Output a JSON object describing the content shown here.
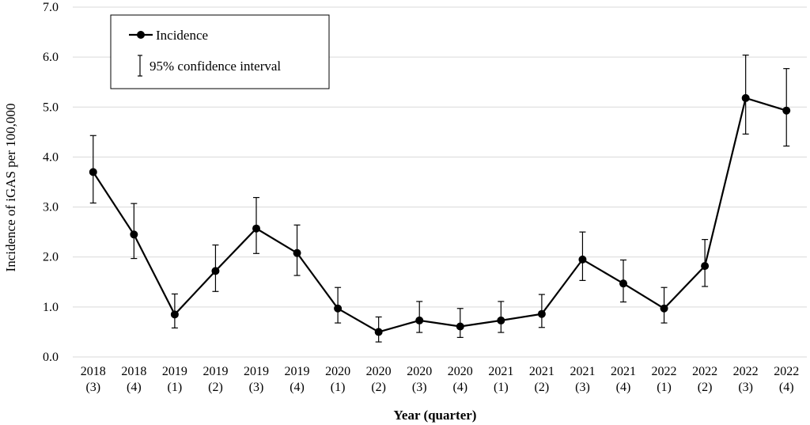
{
  "chart_data": {
    "type": "line",
    "title": "",
    "xlabel": "Year (quarter)",
    "ylabel": "Incidence of iGAS per 100,000",
    "ylim": [
      0,
      7
    ],
    "yticks": [
      "0.0",
      "1.0",
      "2.0",
      "3.0",
      "4.0",
      "5.0",
      "6.0",
      "7.0"
    ],
    "grid": true,
    "legend_position": "top-left",
    "categories": [
      {
        "year": "2018",
        "quarter": "(3)"
      },
      {
        "year": "2018",
        "quarter": "(4)"
      },
      {
        "year": "2019",
        "quarter": "(1)"
      },
      {
        "year": "2019",
        "quarter": "(2)"
      },
      {
        "year": "2019",
        "quarter": "(3)"
      },
      {
        "year": "2019",
        "quarter": "(4)"
      },
      {
        "year": "2020",
        "quarter": "(1)"
      },
      {
        "year": "2020",
        "quarter": "(2)"
      },
      {
        "year": "2020",
        "quarter": "(3)"
      },
      {
        "year": "2020",
        "quarter": "(4)"
      },
      {
        "year": "2021",
        "quarter": "(1)"
      },
      {
        "year": "2021",
        "quarter": "(2)"
      },
      {
        "year": "2021",
        "quarter": "(3)"
      },
      {
        "year": "2021",
        "quarter": "(4)"
      },
      {
        "year": "2022",
        "quarter": "(1)"
      },
      {
        "year": "2022",
        "quarter": "(2)"
      },
      {
        "year": "2022",
        "quarter": "(3)"
      },
      {
        "year": "2022",
        "quarter": "(4)"
      }
    ],
    "series": [
      {
        "name": "Incidence",
        "values": [
          3.7,
          2.45,
          0.85,
          1.72,
          2.57,
          2.08,
          0.97,
          0.5,
          0.73,
          0.61,
          0.73,
          0.86,
          1.95,
          1.47,
          0.97,
          1.82,
          5.18,
          4.93
        ],
        "ci_lower": [
          3.08,
          1.97,
          0.58,
          1.31,
          2.07,
          1.63,
          0.68,
          0.3,
          0.49,
          0.39,
          0.49,
          0.59,
          1.53,
          1.1,
          0.68,
          1.41,
          4.46,
          4.22
        ],
        "ci_upper": [
          4.43,
          3.07,
          1.26,
          2.24,
          3.19,
          2.64,
          1.39,
          0.8,
          1.11,
          0.97,
          1.11,
          1.25,
          2.5,
          1.94,
          1.39,
          2.35,
          6.04,
          5.77
        ]
      }
    ],
    "legend": {
      "series_label": "Incidence",
      "ci_label": "95% confidence interval"
    },
    "colors": {
      "line": "#000000",
      "grid": "#d9d9d9"
    }
  }
}
